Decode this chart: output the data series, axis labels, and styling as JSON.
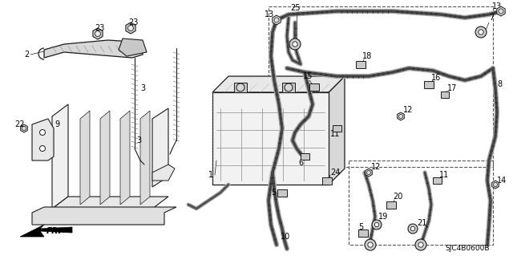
{
  "bg_color": "#ffffff",
  "fig_width": 6.4,
  "fig_height": 3.19,
  "dpi": 100,
  "line_color": "#1a1a1a",
  "label_fontsize": 7.0,
  "diagram_code": "SJC4B0600B"
}
